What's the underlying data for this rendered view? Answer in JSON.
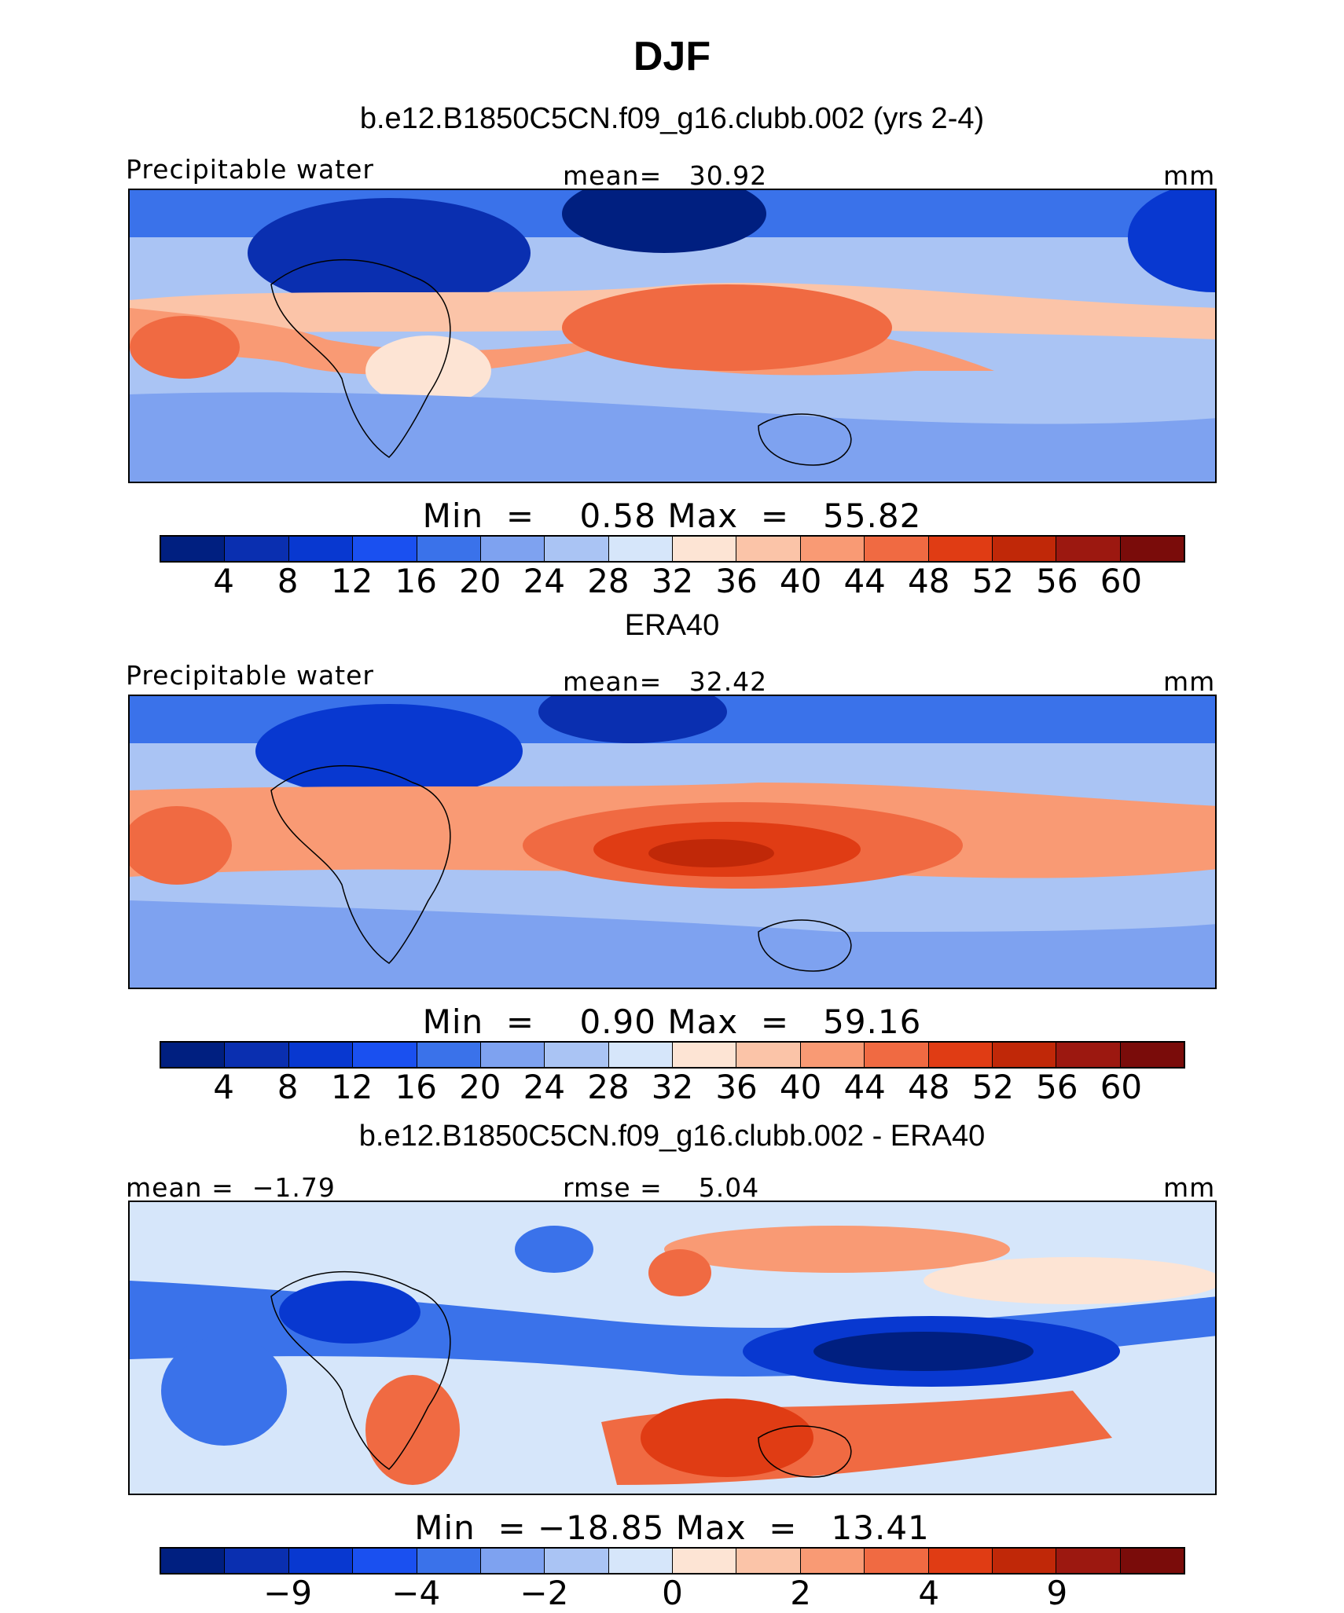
{
  "title": "DJF",
  "panels": [
    {
      "title": "b.e12.B1850C5CN.f09_g16.clubb.002 (yrs 2-4)",
      "left_label": "Precipitable water",
      "center_label": "mean=   30.92",
      "right_label": "mm",
      "minmax": "Min  =    0.58 Max  =   55.82",
      "colorbar": {
        "colors": [
          "#001f80",
          "#0a2fb0",
          "#0838d0",
          "#1a50f0",
          "#3a72ea",
          "#7ea2f0",
          "#aac4f4",
          "#d6e6fa",
          "#fde4d4",
          "#fbc4a8",
          "#f99a74",
          "#f06a42",
          "#e03c14",
          "#c02808",
          "#9c1810",
          "#7a0c0a"
        ],
        "tick_labels": [
          "4",
          "8",
          "12",
          "16",
          "20",
          "24",
          "28",
          "32",
          "36",
          "40",
          "44",
          "48",
          "52",
          "56",
          "60"
        ]
      },
      "map_kind": "model"
    },
    {
      "title": "ERA40",
      "left_label": "Precipitable water",
      "center_label": "mean=   32.42",
      "right_label": "mm",
      "minmax": "Min  =    0.90 Max  =   59.16",
      "colorbar": {
        "colors": [
          "#001f80",
          "#0a2fb0",
          "#0838d0",
          "#1a50f0",
          "#3a72ea",
          "#7ea2f0",
          "#aac4f4",
          "#d6e6fa",
          "#fde4d4",
          "#fbc4a8",
          "#f99a74",
          "#f06a42",
          "#e03c14",
          "#c02808",
          "#9c1810",
          "#7a0c0a"
        ],
        "tick_labels": [
          "4",
          "8",
          "12",
          "16",
          "20",
          "24",
          "28",
          "32",
          "36",
          "40",
          "44",
          "48",
          "52",
          "56",
          "60"
        ]
      },
      "map_kind": "obs"
    },
    {
      "title": "b.e12.B1850C5CN.f09_g16.clubb.002 - ERA40",
      "left_label": "mean =  −1.79",
      "center_label": "rmse =    5.04",
      "right_label": "mm",
      "minmax": "Min  = −18.85 Max  =   13.41",
      "colorbar": {
        "colors": [
          "#001f80",
          "#0a2fb0",
          "#0838d0",
          "#1a50f0",
          "#3a72ea",
          "#7ea2f0",
          "#aac4f4",
          "#d6e6fa",
          "#fde4d4",
          "#fbc4a8",
          "#f99a74",
          "#f06a42",
          "#e03c14",
          "#c02808",
          "#9c1810",
          "#7a0c0a"
        ],
        "tick_labels": [
          "−9",
          "−4",
          "−2",
          "0",
          "2",
          "4",
          "9"
        ]
      },
      "map_kind": "diff"
    }
  ]
}
